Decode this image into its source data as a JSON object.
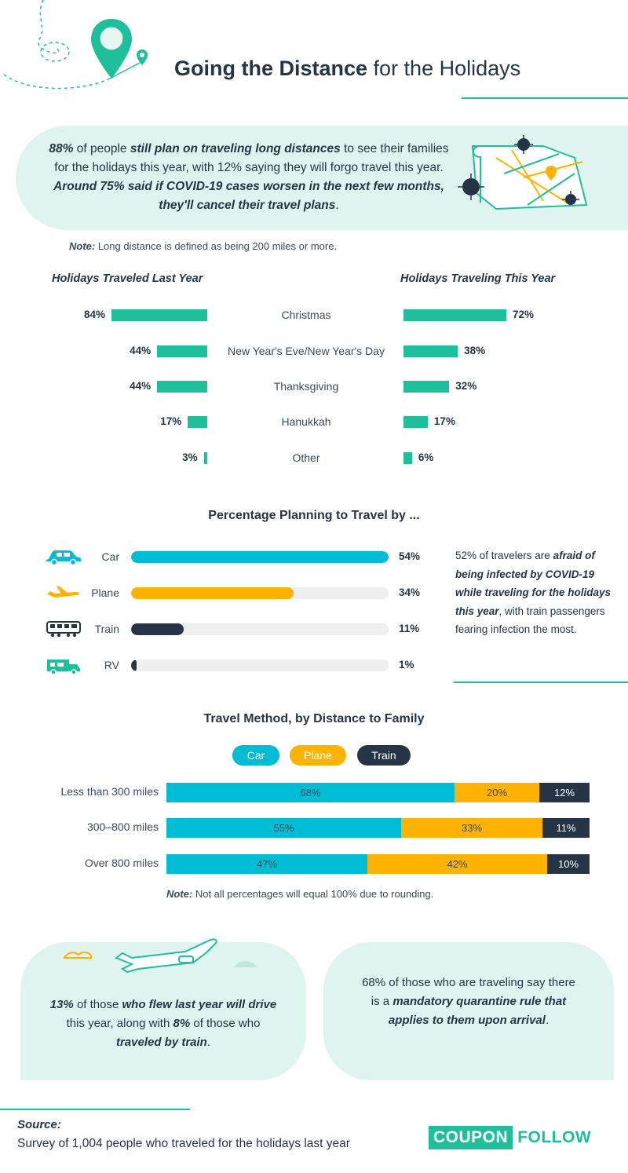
{
  "header": {
    "title_strong": "Going the Distance",
    "title_rest": " for the Holidays"
  },
  "intro": {
    "p1_strong": "88%",
    "p1_a": " of people ",
    "p1_bi": "still plan on traveling long distances",
    "p1_b": " to see their families for the holidays this year, with 12% saying they will forgo travel this year. ",
    "p1_bi2": "Around 75% said if COVID-19 cases worsen in the next few months, they'll cancel their travel plans",
    "p1_end": "."
  },
  "note1": {
    "label": "Note:",
    "text": " Long distance is defined as being 200 miles or more."
  },
  "colors": {
    "teal": "#1fbf9c",
    "car": "#00bcd4",
    "plane": "#ffb300",
    "train": "#263545",
    "track": "#efefef",
    "navy": "#263545"
  },
  "chart_data": [
    {
      "type": "bar",
      "title": "Holidays Traveled Last Year vs. Holidays Traveling This Year",
      "categories": [
        "Christmas",
        "New Year's Eve/New Year's Day",
        "Thanksgiving",
        "Hanukkah",
        "Other"
      ],
      "series": [
        {
          "name": "Holidays Traveled Last Year",
          "values": [
            84,
            44,
            44,
            17,
            3
          ],
          "labels": [
            "84%",
            "44%",
            "44%",
            "17%",
            "3%"
          ]
        },
        {
          "name": "Holidays Traveling This Year",
          "values": [
            72,
            38,
            32,
            17,
            6
          ],
          "labels": [
            "72%",
            "38%",
            "32%",
            "17%",
            "6%"
          ]
        }
      ],
      "unit": "%"
    },
    {
      "type": "bar",
      "title": "Percentage Planning to Travel by ...",
      "categories": [
        "Car",
        "Plane",
        "Train",
        "RV"
      ],
      "values": [
        54,
        34,
        11,
        1
      ],
      "labels": [
        "54%",
        "34%",
        "11%",
        "1%"
      ],
      "icons": [
        "car-icon",
        "plane-icon",
        "train-icon",
        "rv-icon"
      ],
      "ylim": [
        0,
        54
      ]
    },
    {
      "type": "bar",
      "stacked": true,
      "title": "Travel Method, by Distance to Family",
      "categories": [
        "Less than 300 miles",
        "300–800 miles",
        "Over 800 miles"
      ],
      "series": [
        {
          "name": "Car",
          "values": [
            68,
            55,
            47
          ],
          "labels": [
            "68%",
            "55%",
            "47%"
          ]
        },
        {
          "name": "Plane",
          "values": [
            20,
            33,
            42
          ],
          "labels": [
            "20%",
            "33%",
            "42%"
          ]
        },
        {
          "name": "Train",
          "values": [
            12,
            11,
            10
          ],
          "labels": [
            "12%",
            "11%",
            "10%"
          ]
        }
      ],
      "legend": [
        "Car",
        "Plane",
        "Train"
      ]
    }
  ],
  "side_note": {
    "a": "52% of travelers are ",
    "bi": "afraid of being infected by COVID-19 while traveling for the holidays this year",
    "b": ", with train passengers fearing infection the most."
  },
  "note2": {
    "label": "Note:",
    "text": " Not all percentages will equal 100% due to rounding."
  },
  "card_left": {
    "s1": "13%",
    "t1": " of those ",
    "bi1": "who flew last year will drive",
    "t2": " this year, along with ",
    "s2": "8%",
    "t3": " of those who ",
    "bi2": "traveled by train",
    "t4": "."
  },
  "card_right": {
    "t1": "68% of those who are traveling say there is a ",
    "bi1": "mandatory quarantine rule that applies to them upon arrival",
    "t2": "."
  },
  "source": {
    "label": "Source:",
    "text": "Survey of 1,004 people who traveled for the holidays last year"
  },
  "brand": {
    "box": "COUPON",
    "rest": "FOLLOW"
  }
}
